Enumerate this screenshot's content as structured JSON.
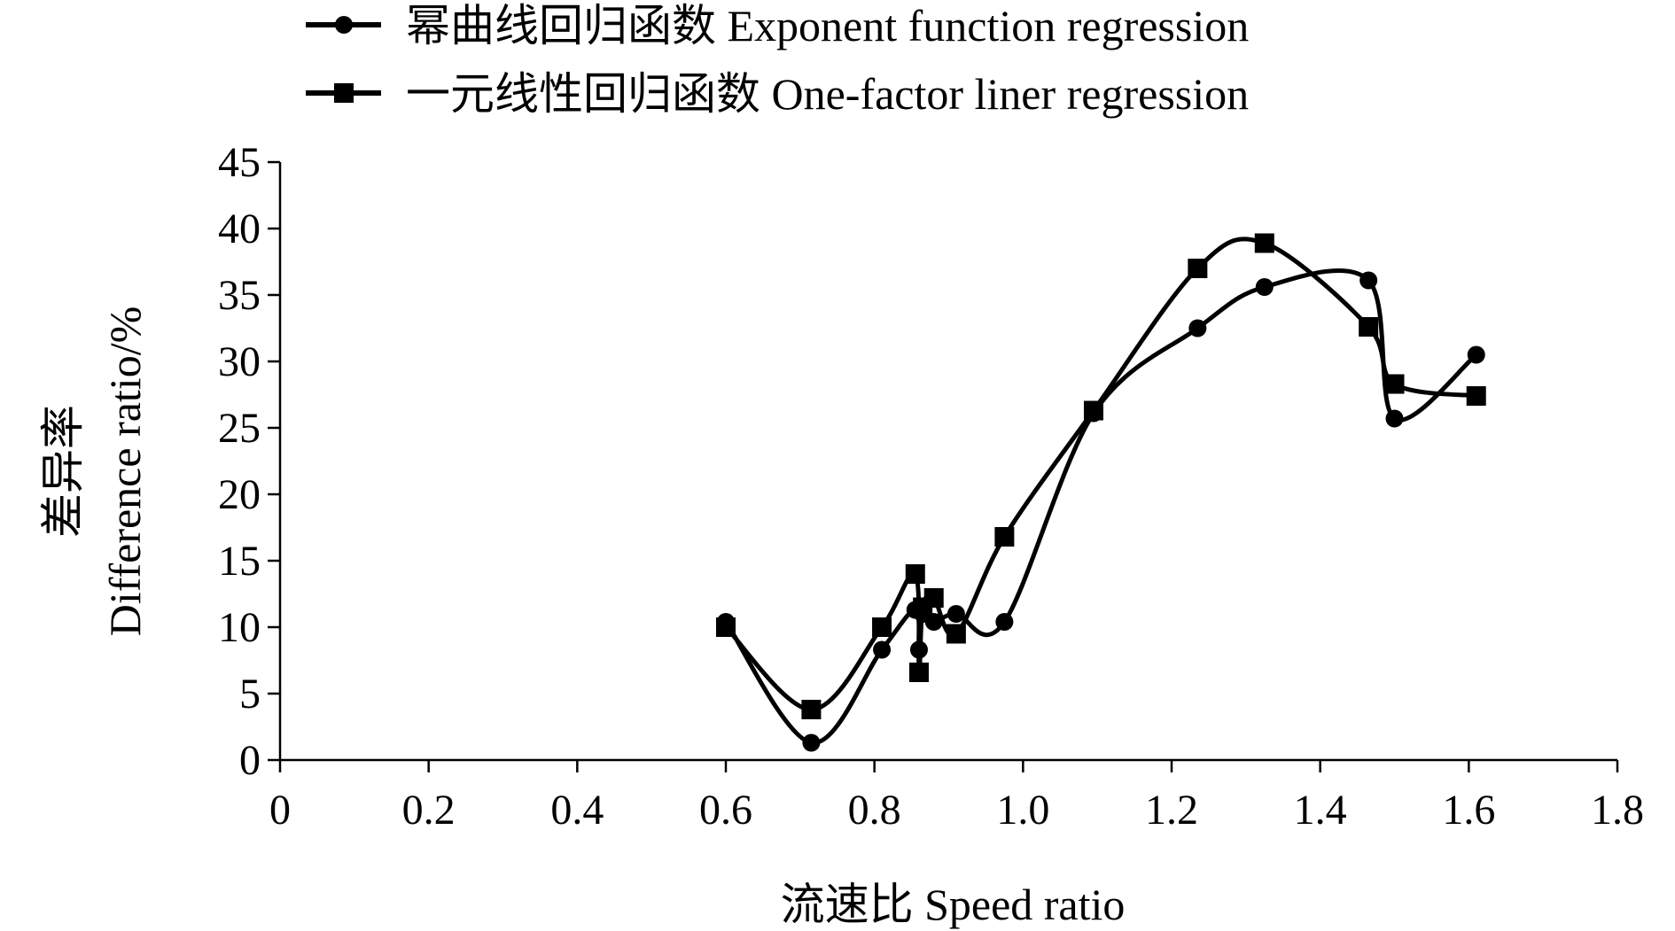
{
  "chart_data": {
    "type": "line",
    "xlabel": "流速比 Speed ratio",
    "ylabel_cn": "差异率",
    "ylabel_en": "Difference ratio/%",
    "xlim": [
      0,
      1.8
    ],
    "ylim": [
      0,
      45
    ],
    "x_ticks": [
      {
        "value": 0,
        "label": "0"
      },
      {
        "value": 0.2,
        "label": "0.2"
      },
      {
        "value": 0.4,
        "label": "0.4"
      },
      {
        "value": 0.6,
        "label": "0.6"
      },
      {
        "value": 0.8,
        "label": "0.8"
      },
      {
        "value": 1.0,
        "label": "1.0"
      },
      {
        "value": 1.2,
        "label": "1.2"
      },
      {
        "value": 1.4,
        "label": "1.4"
      },
      {
        "value": 1.6,
        "label": "1.6"
      },
      {
        "value": 1.8,
        "label": "1.8"
      }
    ],
    "y_ticks": [
      {
        "value": 0,
        "label": "0"
      },
      {
        "value": 5,
        "label": "5"
      },
      {
        "value": 10,
        "label": "10"
      },
      {
        "value": 15,
        "label": "15"
      },
      {
        "value": 20,
        "label": "20"
      },
      {
        "value": 25,
        "label": "25"
      },
      {
        "value": 30,
        "label": "30"
      },
      {
        "value": 35,
        "label": "35"
      },
      {
        "value": 40,
        "label": "40"
      },
      {
        "value": 45,
        "label": "45"
      }
    ],
    "series": [
      {
        "name": "幂曲线回归函数 Exponent function regression",
        "marker": "circle",
        "smooth": true,
        "points": [
          {
            "x": 0.6,
            "y": 10.4
          },
          {
            "x": 0.715,
            "y": 1.3
          },
          {
            "x": 0.81,
            "y": 8.3
          },
          {
            "x": 0.855,
            "y": 11.3
          },
          {
            "x": 0.86,
            "y": 8.3
          },
          {
            "x": 0.865,
            "y": 11.0
          },
          {
            "x": 0.88,
            "y": 10.4
          },
          {
            "x": 0.91,
            "y": 11.0
          },
          {
            "x": 0.975,
            "y": 10.4
          },
          {
            "x": 1.095,
            "y": 26.1
          },
          {
            "x": 1.235,
            "y": 32.5
          },
          {
            "x": 1.325,
            "y": 35.6
          },
          {
            "x": 1.465,
            "y": 36.1
          },
          {
            "x": 1.5,
            "y": 25.7
          },
          {
            "x": 1.61,
            "y": 30.5
          }
        ]
      },
      {
        "name": "一元线性回归函数 One-factor liner regression",
        "marker": "square",
        "smooth": true,
        "points": [
          {
            "x": 0.6,
            "y": 10.0
          },
          {
            "x": 0.715,
            "y": 3.8
          },
          {
            "x": 0.81,
            "y": 10.0
          },
          {
            "x": 0.855,
            "y": 14.0
          },
          {
            "x": 0.86,
            "y": 6.6
          },
          {
            "x": 0.865,
            "y": 11.5
          },
          {
            "x": 0.88,
            "y": 12.2
          },
          {
            "x": 0.91,
            "y": 9.5
          },
          {
            "x": 0.975,
            "y": 16.8
          },
          {
            "x": 1.095,
            "y": 26.3
          },
          {
            "x": 1.235,
            "y": 37.0
          },
          {
            "x": 1.325,
            "y": 38.9
          },
          {
            "x": 1.465,
            "y": 32.6
          },
          {
            "x": 1.5,
            "y": 28.3
          },
          {
            "x": 1.61,
            "y": 27.4
          }
        ]
      }
    ],
    "legend_position": "top"
  }
}
